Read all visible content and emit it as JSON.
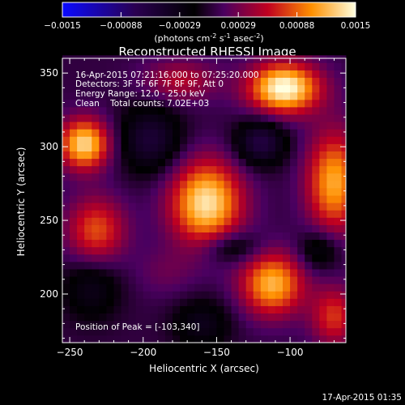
{
  "chart_data": {
    "type": "heatmap",
    "title": "Reconstructed RHESSI Image",
    "xlabel": "Heliocentric X (arcsec)",
    "ylabel": "Heliocentric Y (arcsec)",
    "xlim": [
      -255,
      -62
    ],
    "ylim": [
      167,
      360
    ],
    "xticks": [
      -250,
      -200,
      -150,
      -100
    ],
    "yticks": [
      200,
      250,
      300,
      350
    ],
    "colorbar": {
      "ticks": [
        "-0.0015",
        "-0.00088",
        "-0.00029",
        "0.00029",
        "0.00088",
        "0.0015"
      ],
      "unit_label": "(photons cm",
      "unit_sup1": "-2",
      "unit_mid1": " s",
      "unit_sup2": "-1",
      "unit_mid2": " asec",
      "unit_sup3": "-2",
      "unit_end": ")"
    },
    "annotations": {
      "time_range": "16-Apr-2015 07:21:16.000 to 07:25:20.000",
      "detectors": "Detectors: 3F 5F 6F 7F 8F 9F, Att 0",
      "energy": "Energy Range: 12.0 - 25.0 keV",
      "clean": "Clean    Total counts: 7.02E+03",
      "peak": "Position of Peak = [-103,340]"
    },
    "sources": [
      {
        "x": -240,
        "y": 302,
        "amp": 0.0013,
        "sx": 12,
        "sy": 12
      },
      {
        "x": -104,
        "y": 340,
        "amp": 0.0015,
        "sx": 17,
        "sy": 12
      },
      {
        "x": -157,
        "y": 262,
        "amp": 0.00135,
        "sx": 17,
        "sy": 20
      },
      {
        "x": -232,
        "y": 243,
        "amp": 0.0008,
        "sx": 14,
        "sy": 16
      },
      {
        "x": -112,
        "y": 207,
        "amp": 0.00115,
        "sx": 15,
        "sy": 15
      },
      {
        "x": -70,
        "y": 276,
        "amp": 0.0011,
        "sx": 13,
        "sy": 24
      },
      {
        "x": -70,
        "y": 185,
        "amp": 0.0007,
        "sx": 11,
        "sy": 14
      },
      {
        "x": -175,
        "y": 345,
        "amp": 0.0005,
        "sx": 18,
        "sy": 10
      },
      {
        "x": -185,
        "y": 215,
        "amp": 0.0002,
        "sx": 15,
        "sy": 12
      },
      {
        "x": -195,
        "y": 305,
        "amp": -0.0006,
        "sx": 15,
        "sy": 16
      },
      {
        "x": -120,
        "y": 303,
        "amp": -0.0007,
        "sx": 12,
        "sy": 11
      },
      {
        "x": -235,
        "y": 205,
        "amp": -0.0004,
        "sx": 14,
        "sy": 16
      },
      {
        "x": -140,
        "y": 232,
        "amp": -0.00045,
        "sx": 14,
        "sy": 8
      },
      {
        "x": -160,
        "y": 180,
        "amp": -0.0004,
        "sx": 14,
        "sy": 12
      },
      {
        "x": -80,
        "y": 230,
        "amp": -0.00045,
        "sx": 10,
        "sy": 10
      }
    ]
  },
  "footer_timestamp": "17-Apr-2015 01:35"
}
